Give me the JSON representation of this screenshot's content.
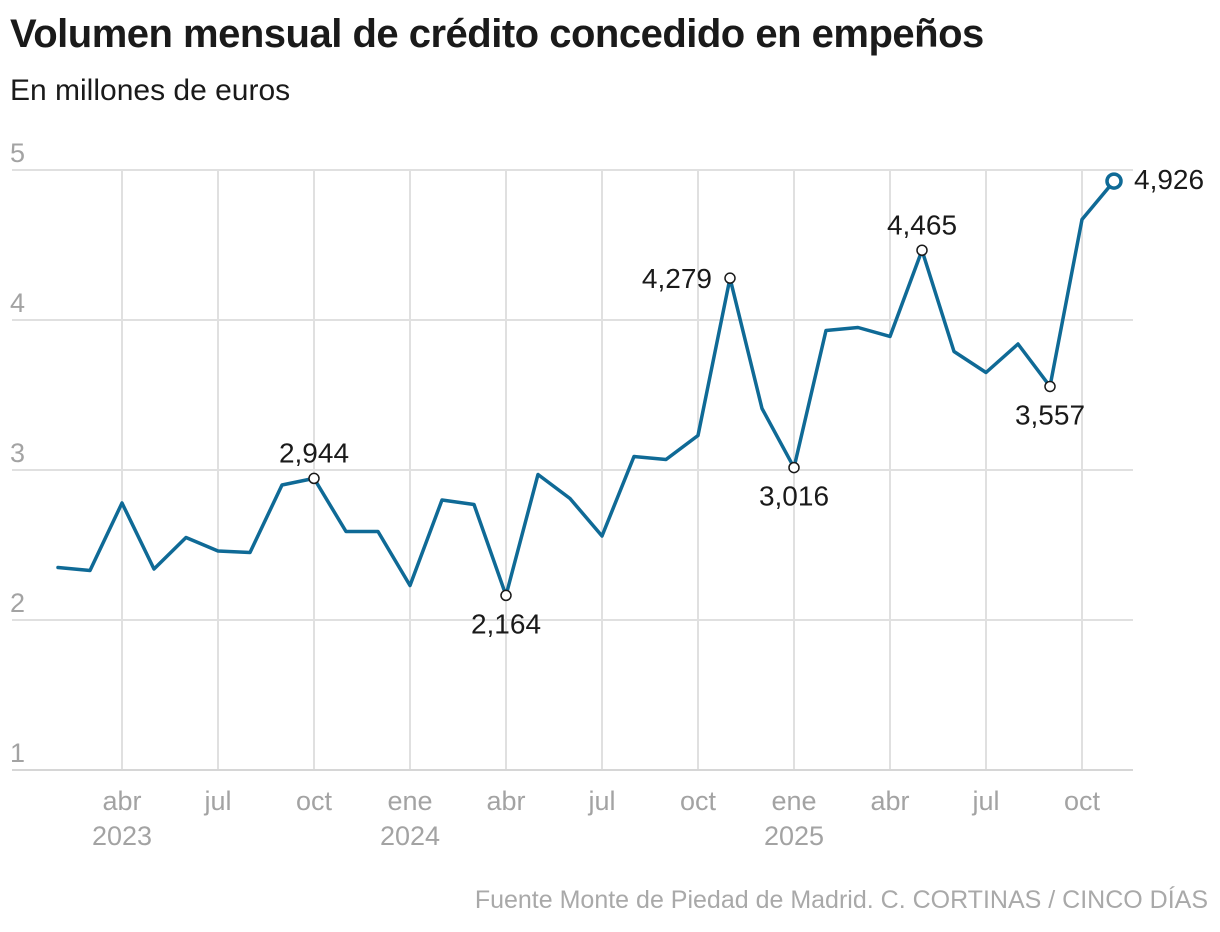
{
  "header": {
    "title": "Volumen mensual de crédito concedido en empeños",
    "subtitle": "En millones de euros"
  },
  "footer": {
    "source": "Fuente Monte de Piedad de Madrid. C. CORTINAS / CINCO DÍAS"
  },
  "colors": {
    "line": "#0f6a96",
    "grid": "#e0e0e0",
    "tick_text": "#a3a3a3"
  },
  "chart_data": {
    "type": "line",
    "title": "Volumen mensual de crédito concedido en empeños",
    "subtitle": "En millones de euros",
    "xlabel": "",
    "ylabel": "",
    "ylim": [
      1,
      5
    ],
    "y_ticks": [
      1,
      2,
      3,
      4,
      5
    ],
    "grid": true,
    "x_tick_labels": [
      {
        "date": "2023-04",
        "label": "abr",
        "year": "2023"
      },
      {
        "date": "2023-07",
        "label": "jul",
        "year": ""
      },
      {
        "date": "2023-10",
        "label": "oct",
        "year": ""
      },
      {
        "date": "2024-01",
        "label": "ene",
        "year": "2024"
      },
      {
        "date": "2024-04",
        "label": "abr",
        "year": ""
      },
      {
        "date": "2024-07",
        "label": "jul",
        "year": ""
      },
      {
        "date": "2024-10",
        "label": "oct",
        "year": ""
      },
      {
        "date": "2025-01",
        "label": "ene",
        "year": "2025"
      },
      {
        "date": "2025-04",
        "label": "abr",
        "year": ""
      },
      {
        "date": "2025-07",
        "label": "jul",
        "year": ""
      },
      {
        "date": "2025-10",
        "label": "oct",
        "year": ""
      }
    ],
    "series": [
      {
        "x": [
          "2023-02",
          "2023-03",
          "2023-04",
          "2023-05",
          "2023-06",
          "2023-07",
          "2023-08",
          "2023-09",
          "2023-10",
          "2023-11",
          "2023-12",
          "2024-01",
          "2024-02",
          "2024-03",
          "2024-04",
          "2024-05",
          "2024-06",
          "2024-07",
          "2024-08",
          "2024-09",
          "2024-10",
          "2024-11",
          "2024-12",
          "2025-01",
          "2025-02",
          "2025-03",
          "2025-04",
          "2025-05",
          "2025-06",
          "2025-07",
          "2025-08",
          "2025-09",
          "2025-10",
          "2025-11"
        ],
        "values": [
          2.35,
          2.33,
          2.78,
          2.34,
          2.55,
          2.46,
          2.45,
          2.9,
          2.944,
          2.59,
          2.59,
          2.23,
          2.8,
          2.77,
          2.164,
          2.97,
          2.81,
          2.56,
          3.09,
          3.07,
          3.23,
          4.279,
          3.41,
          3.016,
          3.93,
          3.95,
          3.89,
          4.465,
          3.79,
          3.65,
          3.84,
          3.557,
          4.67,
          4.926
        ]
      }
    ],
    "annotations": [
      {
        "date": "2023-10",
        "value": 2.944,
        "label": "2,944",
        "position": "above"
      },
      {
        "date": "2024-04",
        "value": 2.164,
        "label": "2,164",
        "position": "below"
      },
      {
        "date": "2024-11",
        "value": 4.279,
        "label": "4,279",
        "position": "left"
      },
      {
        "date": "2025-01",
        "value": 3.016,
        "label": "3,016",
        "position": "below"
      },
      {
        "date": "2025-05",
        "value": 4.465,
        "label": "4,465",
        "position": "above"
      },
      {
        "date": "2025-09",
        "value": 3.557,
        "label": "3,557",
        "position": "below"
      },
      {
        "date": "2025-11",
        "value": 4.926,
        "label": "4,926",
        "position": "right",
        "emphasis": true
      }
    ]
  }
}
